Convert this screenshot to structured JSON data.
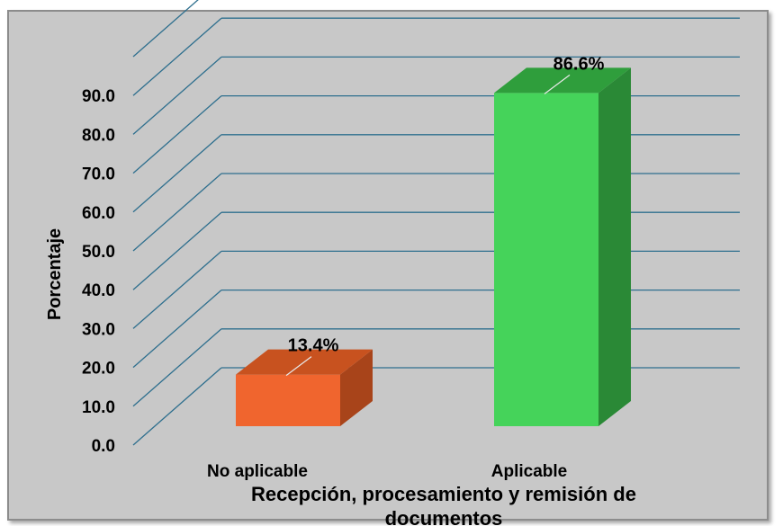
{
  "chart_data": {
    "type": "bar",
    "categories": [
      "No aplicable",
      "Aplicable"
    ],
    "values": [
      13.4,
      86.6
    ],
    "data_labels": [
      "13.4%",
      "86.6%"
    ],
    "ylabel": "Porcentaje",
    "xlabel_lines": [
      "Recepción, procesamiento y remisión de",
      "documentos"
    ],
    "ylim": [
      0,
      90
    ],
    "yticks": [
      "0.0",
      "10.0",
      "20.0",
      "30.0",
      "40.0",
      "50.0",
      "60.0",
      "70.0",
      "80.0",
      "90.0"
    ],
    "grid": true,
    "colors": {
      "No aplicable": {
        "front": "#f0652e",
        "top": "#c8521f",
        "side": "#a8441a"
      },
      "Aplicable": {
        "front": "#45d35a",
        "top": "#2f9e3c",
        "side": "#2a8936"
      },
      "gridline": "#2e6f8e",
      "background": "#c8c8c8"
    }
  }
}
